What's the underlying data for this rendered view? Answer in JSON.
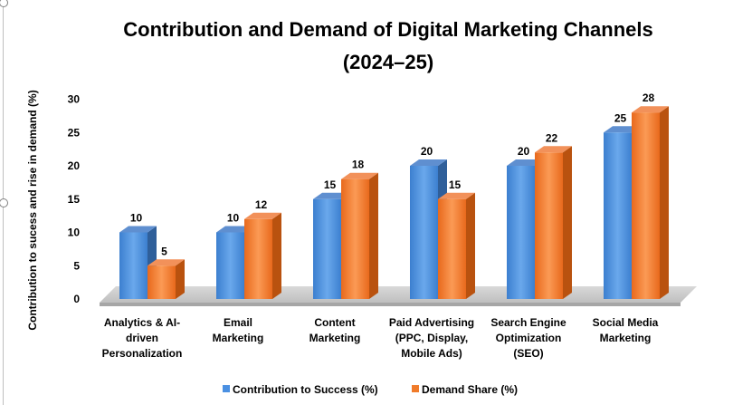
{
  "chart_data": {
    "type": "bar",
    "title_line1": "Contribution and Demand of Digital Marketing Channels",
    "title_line2": "(2024–25)",
    "ylabel": "Contribution to sucess and rise in demand (%)",
    "xlabel": "",
    "ylim": [
      0,
      30
    ],
    "yticks": [
      0,
      5,
      10,
      15,
      20,
      25,
      30
    ],
    "categories": [
      [
        "Analytics & AI-",
        "driven",
        "Personalization"
      ],
      [
        "Email",
        "Marketing"
      ],
      [
        "Content",
        "Marketing"
      ],
      [
        "Paid Advertising",
        "(PPC, Display,",
        "Mobile Ads)"
      ],
      [
        "Search Engine",
        "Optimization",
        "(SEO)"
      ],
      [
        "Social Media",
        "Marketing"
      ]
    ],
    "series": [
      {
        "name": "Contribution to Success (%)",
        "values": [
          10,
          10,
          15,
          20,
          20,
          25
        ],
        "color": "#4a90e2"
      },
      {
        "name": "Demand Share (%)",
        "values": [
          5,
          12,
          18,
          15,
          22,
          28
        ],
        "color": "#f07b2a"
      }
    ],
    "legend_position": "bottom",
    "grid": false
  }
}
